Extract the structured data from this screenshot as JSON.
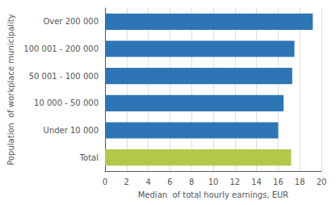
{
  "chart_data": {
    "type": "bar",
    "orientation": "horizontal",
    "categories": [
      "Total",
      "Under 10 000",
      "10 000 - 50 000",
      "50 001 - 100 000",
      "100 001 - 200 000",
      "Over 200 000"
    ],
    "values": [
      17.2,
      16.0,
      16.5,
      17.3,
      17.5,
      19.2
    ],
    "colors": [
      "#B5C748",
      "#2E75B6",
      "#2E75B6",
      "#2E75B6",
      "#2E75B6",
      "#2E75B6"
    ],
    "xlabel": "Median  of total hourly earnings, EUR",
    "ylabel": "Population  of workplace municipality",
    "xlim": [
      0,
      20
    ],
    "xticks": [
      0,
      2,
      4,
      6,
      8,
      10,
      12,
      14,
      16,
      18,
      20
    ],
    "grid": true
  }
}
